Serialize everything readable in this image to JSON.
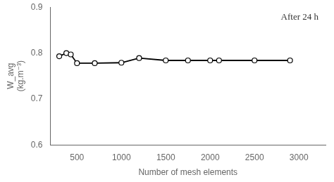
{
  "chart_data": {
    "type": "line",
    "x": [
      300,
      380,
      430,
      500,
      700,
      1000,
      1200,
      1500,
      1750,
      2000,
      2100,
      2500,
      2900
    ],
    "values": [
      0.793,
      0.8,
      0.797,
      0.778,
      0.778,
      0.779,
      0.789,
      0.784,
      0.784,
      0.784,
      0.784,
      0.784,
      0.784
    ],
    "xlim": [
      200,
      3300
    ],
    "ylim": [
      0.6,
      0.9
    ],
    "xticks": [
      500,
      1000,
      1500,
      2000,
      2500,
      3000
    ],
    "yticks": [
      0.6,
      0.7,
      0.8,
      0.9
    ],
    "xlabel": "Number of mesh elements",
    "ylabel": "W_avg\n(kg.m⁻³)",
    "annotation": "After 24 h",
    "color": "#000000",
    "marker": "circle",
    "grid": false
  }
}
